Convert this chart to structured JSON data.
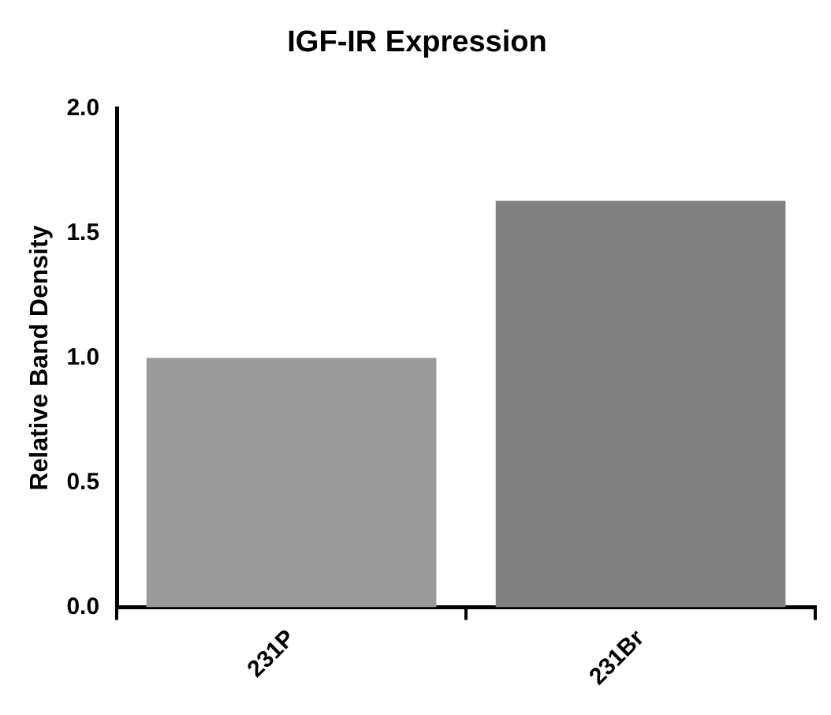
{
  "chart_data": {
    "type": "bar",
    "title": "IGF-IR Expression",
    "ylabel": "Relative Band Density",
    "categories": [
      "231P",
      "231Br"
    ],
    "values": [
      1.0,
      1.63
    ],
    "colors": [
      "#9a9a9a",
      "#808080"
    ],
    "ylim": [
      0,
      2.0
    ],
    "yticks": [
      {
        "value": 0,
        "label": "0.0"
      },
      {
        "value": 0.5,
        "label": "0.5"
      },
      {
        "value": 1.0,
        "label": "1.0"
      },
      {
        "value": 1.5,
        "label": "1.5"
      },
      {
        "value": 2.0,
        "label": "2.0"
      }
    ],
    "grid": false,
    "legend": false
  }
}
